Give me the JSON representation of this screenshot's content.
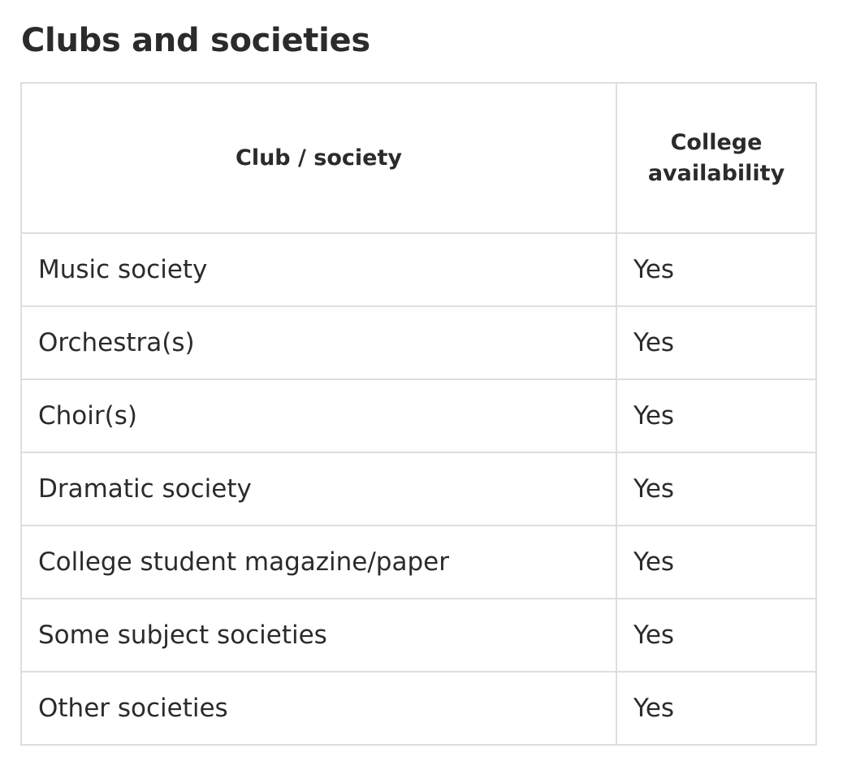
{
  "section": {
    "title": "Clubs and societies"
  },
  "table": {
    "headers": {
      "club": "Club / society",
      "availability": "College availability"
    },
    "rows": [
      {
        "club": "Music society",
        "availability": "Yes"
      },
      {
        "club": "Orchestra(s)",
        "availability": "Yes"
      },
      {
        "club": "Choir(s)",
        "availability": "Yes"
      },
      {
        "club": "Dramatic society",
        "availability": "Yes"
      },
      {
        "club": "College student magazine/paper",
        "availability": "Yes"
      },
      {
        "club": "Some subject societies",
        "availability": "Yes"
      },
      {
        "club": "Other societies",
        "availability": "Yes"
      }
    ]
  }
}
